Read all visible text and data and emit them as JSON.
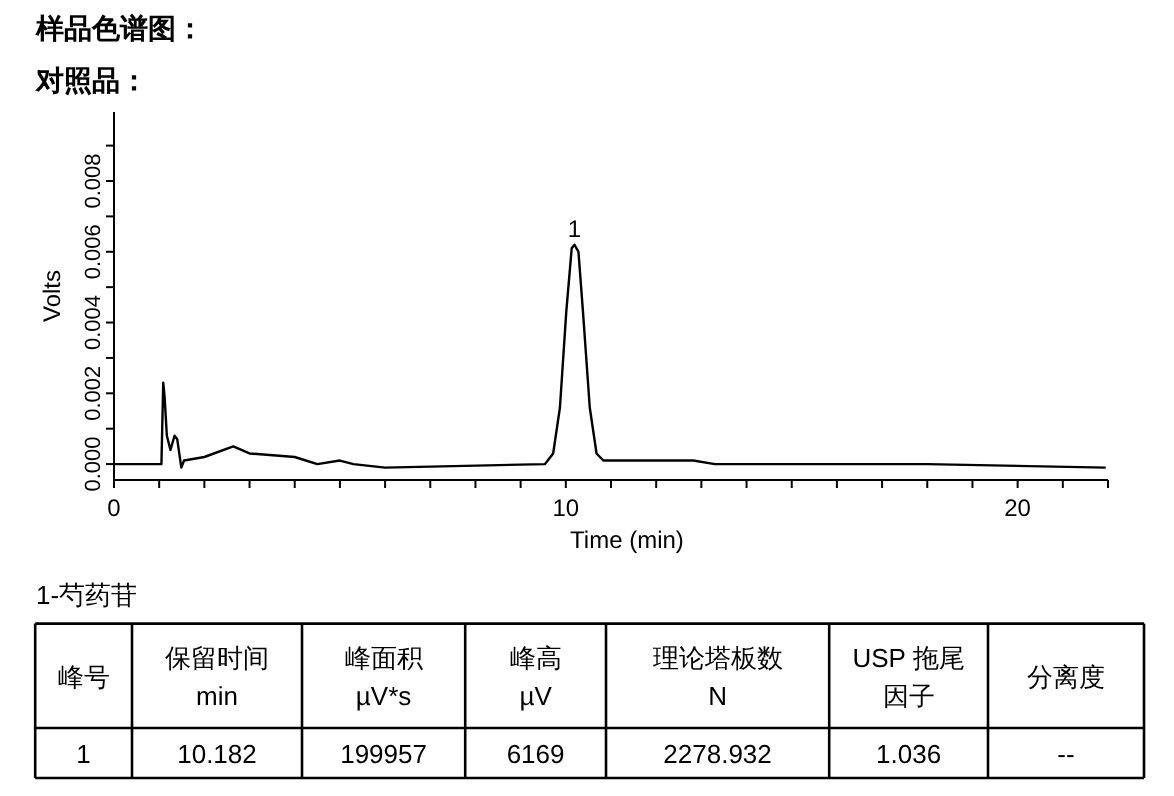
{
  "chart_data": {
    "type": "line",
    "title": "样品色谱图：",
    "subtitle": "对照品：",
    "xlabel": "Time (min)",
    "ylabel": "Volts",
    "x": [
      0,
      1.0,
      1.05,
      1.09,
      1.12,
      1.17,
      1.25,
      1.34,
      1.4,
      1.49,
      1.55,
      2.0,
      2.64,
      3.0,
      4.0,
      4.5,
      5.0,
      5.3,
      6.0,
      9.54,
      9.72,
      9.87,
      10.01,
      10.13,
      10.19,
      10.28,
      10.38,
      10.53,
      10.68,
      10.83,
      12.82,
      13.3,
      18.0,
      21.95
    ],
    "series": [
      {
        "color": "#000000",
        "values": [
          0,
          0,
          0,
          0.0023,
          0.0019,
          0.0008,
          0.0004,
          0.0008,
          0.0007,
          -0.0001,
          0.0001,
          0.0002,
          0.0005,
          0.0003,
          0.0002,
          0,
          0.0001,
          0,
          -0.0001,
          0,
          0.0003,
          0.0016,
          0.0043,
          0.0061,
          0.0062,
          0.006,
          0.0043,
          0.0016,
          0.0003,
          0.0001,
          0.0001,
          0,
          0,
          -0.0001
        ]
      }
    ],
    "xlim": [
      0,
      22
    ],
    "ylim": [
      -0.00045,
      0.00995
    ],
    "xticks": [
      0,
      {
        "value": 1,
        "label": null
      },
      {
        "value": 2,
        "label": null
      },
      {
        "value": 3,
        "label": null
      },
      {
        "value": 4,
        "label": null
      },
      {
        "value": 5,
        "label": null
      },
      {
        "value": 6,
        "label": null
      },
      {
        "value": 7,
        "label": null
      },
      {
        "value": 8,
        "label": null
      },
      {
        "value": 9,
        "label": null
      },
      10,
      {
        "value": 11,
        "label": null
      },
      {
        "value": 12,
        "label": null
      },
      {
        "value": 13,
        "label": null
      },
      {
        "value": 14,
        "label": null
      },
      {
        "value": 15,
        "label": null
      },
      {
        "value": 16,
        "label": null
      },
      {
        "value": 17,
        "label": null
      },
      {
        "value": 18,
        "label": null
      },
      {
        "value": 19,
        "label": null
      },
      20,
      {
        "value": 21,
        "label": null
      },
      {
        "value": 22,
        "label": null
      }
    ],
    "yticks": [
      {
        "value": 0,
        "label": "0.000"
      },
      {
        "value": 0.001,
        "label": null
      },
      {
        "value": 0.002,
        "label": "0.002"
      },
      {
        "value": 0.003,
        "label": null
      },
      {
        "value": 0.004,
        "label": "0.004"
      },
      {
        "value": 0.005,
        "label": null
      },
      {
        "value": 0.006,
        "label": "0.006"
      },
      {
        "value": 0.007,
        "label": null
      },
      {
        "value": 0.008,
        "label": "0.008"
      },
      {
        "value": 0.009,
        "label": null
      }
    ],
    "annotations": [
      {
        "text": "1",
        "x": 10.19,
        "y": 0.0062
      },
      "1-芍药苷",
      "峰号",
      "保留时间",
      "min",
      "峰面积",
      "µV*s",
      "峰高",
      "µV",
      "理论塔板数",
      "N",
      "USP 拖尾",
      "因子",
      "分离度",
      "1",
      "10.182",
      "199957",
      "6169",
      "2278.932",
      "1.036",
      "--"
    ]
  }
}
